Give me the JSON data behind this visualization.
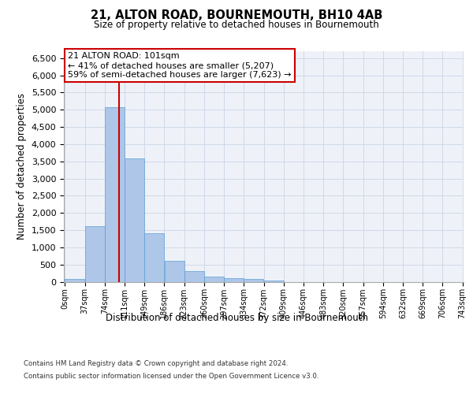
{
  "title1": "21, ALTON ROAD, BOURNEMOUTH, BH10 4AB",
  "title2": "Size of property relative to detached houses in Bournemouth",
  "xlabel": "Distribution of detached houses by size in Bournemouth",
  "ylabel": "Number of detached properties",
  "bar_values": [
    75,
    1625,
    5075,
    3575,
    1400,
    600,
    300,
    150,
    100,
    75,
    40,
    0,
    0,
    0,
    0,
    0,
    0,
    0,
    0,
    0
  ],
  "bin_labels": [
    "0sqm",
    "37sqm",
    "74sqm",
    "111sqm",
    "149sqm",
    "186sqm",
    "223sqm",
    "260sqm",
    "297sqm",
    "334sqm",
    "372sqm",
    "409sqm",
    "446sqm",
    "483sqm",
    "520sqm",
    "557sqm",
    "594sqm",
    "632sqm",
    "669sqm",
    "706sqm",
    "743sqm"
  ],
  "bar_color": "#aec6e8",
  "bar_edge_color": "#5a9fd4",
  "grid_color": "#d0d8e8",
  "bg_color": "#eef2f8",
  "vline_x": 101,
  "vline_color": "#cc0000",
  "annotation_text1": "21 ALTON ROAD: 101sqm",
  "annotation_text2": "← 41% of detached houses are smaller (5,207)",
  "annotation_text3": "59% of semi-detached houses are larger (7,623) →",
  "annotation_box_color": "#cc0000",
  "ylim": [
    0,
    6700
  ],
  "yticks": [
    0,
    500,
    1000,
    1500,
    2000,
    2500,
    3000,
    3500,
    4000,
    4500,
    5000,
    5500,
    6000,
    6500
  ],
  "footnote1": "Contains HM Land Registry data © Crown copyright and database right 2024.",
  "footnote2": "Contains public sector information licensed under the Open Government Licence v3.0.",
  "bin_width": 37,
  "n_bins": 20
}
